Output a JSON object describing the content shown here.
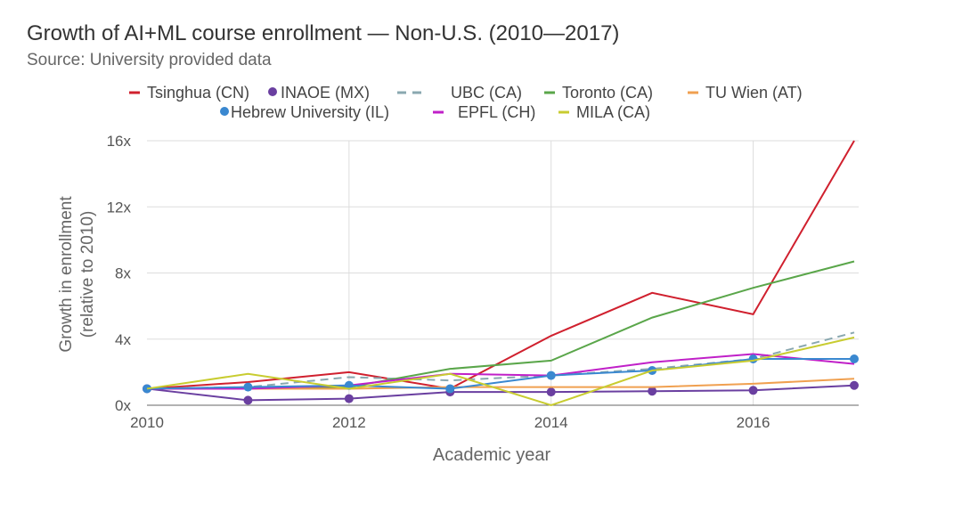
{
  "chart_data": {
    "type": "line",
    "title": "Growth of AI+ML course enrollment — Non-U.S. (2010—2017)",
    "subtitle": "Source: University provided data",
    "xlabel": "Academic year",
    "ylabel": [
      "Growth in enrollment",
      "(relative to 2010)"
    ],
    "x": [
      2010,
      2011,
      2012,
      2013,
      2014,
      2015,
      2016,
      2017
    ],
    "xticks": [
      "2010",
      "2012",
      "2014",
      "2016"
    ],
    "yticks": [
      "0x",
      "4x",
      "8x",
      "12x",
      "16x"
    ],
    "ylim": [
      0,
      16
    ],
    "legend_placement": "top",
    "series": [
      {
        "name": "Tsinghua (CN)",
        "color": "#d0202e",
        "style": "line",
        "values": [
          1,
          1.4,
          2.0,
          1.0,
          4.2,
          6.8,
          5.5,
          16
        ]
      },
      {
        "name": "INAOE (MX)",
        "color": "#6a3fa0",
        "style": "dot",
        "values": [
          1,
          0.3,
          0.4,
          0.8,
          0.8,
          0.85,
          0.9,
          1.2
        ]
      },
      {
        "name": "UBC (CA)",
        "color": "#8aa8b0",
        "style": "dash",
        "values": [
          1,
          1.1,
          1.7,
          1.5,
          1.8,
          2.2,
          2.8,
          4.4
        ]
      },
      {
        "name": "Toronto (CA)",
        "color": "#5aa64a",
        "style": "line",
        "values": [
          1,
          1.0,
          1.1,
          2.2,
          2.7,
          5.3,
          7.1,
          8.7
        ]
      },
      {
        "name": "TU Wien (AT)",
        "color": "#f0a050",
        "style": "line",
        "values": [
          1,
          1.0,
          1.0,
          1.1,
          1.1,
          1.1,
          1.3,
          1.6
        ]
      },
      {
        "name": "Hebrew University (IL)",
        "color": "#3a88d0",
        "style": "dot",
        "values": [
          1,
          1.1,
          1.2,
          1.0,
          1.8,
          2.1,
          2.8,
          2.8
        ]
      },
      {
        "name": "EPFL (CH)",
        "color": "#c020c8",
        "style": "line",
        "values": [
          1,
          1.0,
          1.2,
          1.9,
          1.8,
          2.6,
          3.1,
          2.5
        ]
      },
      {
        "name": "MILA (CA)",
        "color": "#c8cc30",
        "style": "line",
        "values": [
          1,
          1.9,
          1.0,
          1.9,
          0,
          2.1,
          2.7,
          4.1
        ]
      }
    ]
  }
}
